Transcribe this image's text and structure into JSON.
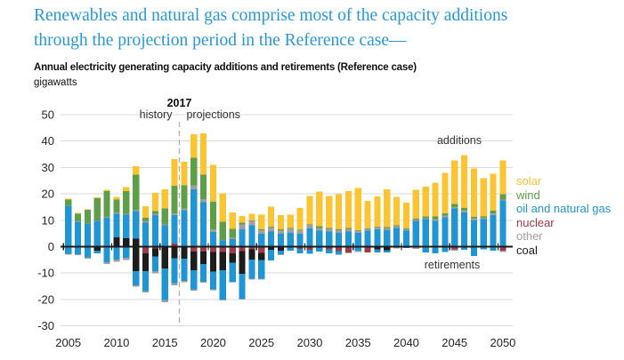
{
  "title": {
    "line1": "Renewables and natural gas comprise most of the capacity additions",
    "line2": "through the projection period in the Reference case—"
  },
  "chart": {
    "subtitle": "Annual electricity generating capacity additions and retirements (Reference case)",
    "units": "gigawatts"
  },
  "annotations": {
    "divider_year": "2017",
    "history": "history",
    "projections": "projections",
    "additions": "additions",
    "retirements": "retirements"
  },
  "colors": {
    "solar": "#fdc431",
    "wind": "#5f9e49",
    "gas": "#1f95d4",
    "nuclear": "#9e3b49",
    "other": "#9f9f9f",
    "coal": "#1d1d1d",
    "gridline": "#d9d9d9",
    "zero_axis": "#1a1a1a",
    "divider": "#b3b3b3",
    "text_dark": "#262626",
    "title_blue": "#2a96d8"
  },
  "legend": {
    "items": [
      {
        "label": "solar",
        "color_key": "solar"
      },
      {
        "label": "wind",
        "color_key": "wind"
      },
      {
        "label": "oil and natural gas",
        "color_key": "gas"
      },
      {
        "label": "nuclear",
        "color_key": "nuclear"
      },
      {
        "label": "other",
        "color_key": "other"
      },
      {
        "label": "coal",
        "color_key": "coal"
      }
    ]
  },
  "chart_data": {
    "type": "bar",
    "stacked": true,
    "title": "Annual electricity generating capacity additions and retirements (Reference case)",
    "ylabel": "gigawatts",
    "ylim": [
      -30,
      50
    ],
    "y_ticks": [
      50,
      40,
      30,
      20,
      10,
      0,
      -10,
      -20,
      -30
    ],
    "x_ticks_labeled": [
      2005,
      2010,
      2015,
      2020,
      2025,
      2030,
      2035,
      2040,
      2045,
      2050
    ],
    "divider_between": [
      2016,
      2017
    ],
    "legend_position": "right",
    "grid": "horizontal",
    "years": [
      2005,
      2006,
      2007,
      2008,
      2009,
      2010,
      2011,
      2012,
      2013,
      2014,
      2015,
      2016,
      2017,
      2018,
      2019,
      2020,
      2021,
      2022,
      2023,
      2024,
      2025,
      2026,
      2027,
      2028,
      2029,
      2030,
      2031,
      2032,
      2033,
      2034,
      2035,
      2036,
      2037,
      2038,
      2039,
      2040,
      2041,
      2042,
      2043,
      2044,
      2045,
      2046,
      2047,
      2048,
      2049,
      2050
    ],
    "series_additions": [
      {
        "name": "coal",
        "color_key": "coal",
        "values": [
          0,
          0,
          0,
          0,
          0,
          3.6,
          3.2,
          3.0,
          0,
          0,
          0,
          0,
          0,
          0,
          0,
          0,
          0,
          0,
          0,
          0,
          0,
          0,
          0,
          0,
          0,
          0,
          0,
          0,
          0,
          0,
          0,
          0,
          0,
          0,
          0,
          0,
          0,
          0,
          0,
          0,
          0,
          0,
          0,
          0,
          0,
          0
        ]
      },
      {
        "name": "nuclear",
        "color_key": "nuclear",
        "values": [
          0,
          0,
          0,
          0,
          0,
          0,
          0,
          0,
          0,
          0,
          0,
          1.1,
          0,
          0,
          0,
          0,
          0,
          0,
          0,
          0,
          0,
          0,
          0,
          0,
          0,
          0,
          0,
          0,
          0,
          0,
          0,
          0,
          0,
          0,
          0,
          0,
          0,
          0,
          0,
          0,
          0,
          0,
          0,
          0,
          0,
          0
        ]
      },
      {
        "name": "oil and natural gas",
        "color_key": "gas",
        "values": [
          15.5,
          9.5,
          8.8,
          9.7,
          11.0,
          8.9,
          9.0,
          10.5,
          9.1,
          11.9,
          8.0,
          10.8,
          13.8,
          21.7,
          16.8,
          5.5,
          2.3,
          2.9,
          6.6,
          8.0,
          4.8,
          5.7,
          4.8,
          5.2,
          4.9,
          6.9,
          6.0,
          5.7,
          5.2,
          5.7,
          5.2,
          6.0,
          6.6,
          6.3,
          7.1,
          6.0,
          9.7,
          10.4,
          9.8,
          11.1,
          14.5,
          13.0,
          10.0,
          10.4,
          11.9,
          17.5
        ]
      },
      {
        "name": "other",
        "color_key": "other",
        "values": [
          0.2,
          0.2,
          0.2,
          0.2,
          0.2,
          0.4,
          0.3,
          0.4,
          0.5,
          0.6,
          0.4,
          0.8,
          0.7,
          1.5,
          1.2,
          1.1,
          0.2,
          0.4,
          1.9,
          1.7,
          1.5,
          1.7,
          1.5,
          1.7,
          1.3,
          1.3,
          1.1,
          1.1,
          1.1,
          1.1,
          0.8,
          0.7,
          0.8,
          0.8,
          0.7,
          0.7,
          0.6,
          0.4,
          0.7,
          0.7,
          0.4,
          0.8,
          0.8,
          0.5,
          0.8,
          0.4
        ]
      },
      {
        "name": "wind",
        "color_key": "wind",
        "values": [
          2.2,
          2.7,
          4.9,
          8.5,
          9.8,
          5.0,
          8.5,
          13.3,
          1.4,
          0.9,
          6.0,
          10.4,
          8.7,
          10.4,
          9.3,
          10.4,
          7.0,
          3.4,
          0.6,
          0.2,
          0.3,
          0.2,
          0.2,
          0.2,
          0.2,
          0.3,
          0.7,
          0.3,
          0.3,
          0.3,
          0.3,
          0.2,
          0.2,
          0.3,
          0.3,
          0.2,
          0.3,
          0.6,
          0.9,
          0.9,
          1.3,
          0.9,
          0.4,
          0.6,
          0.9,
          2.0
        ]
      },
      {
        "name": "solar",
        "color_key": "solar",
        "values": [
          0.3,
          0.4,
          0.3,
          0.3,
          0.5,
          0.9,
          1.5,
          3.3,
          4.3,
          7.0,
          7.3,
          10.1,
          9.0,
          9.0,
          15.7,
          14.0,
          10.7,
          6.3,
          2.5,
          2.6,
          5.6,
          7.5,
          5.4,
          5.1,
          8.3,
          10.7,
          13.1,
          12.1,
          13.2,
          14.0,
          15.9,
          10.4,
          11.4,
          14.4,
          10.7,
          9.8,
          10.9,
          11.4,
          12.9,
          15.2,
          16.5,
          20.0,
          18.4,
          14.5,
          14.0,
          12.8
        ]
      }
    ],
    "series_retirements": [
      {
        "name": "nuclear",
        "color_key": "nuclear",
        "values": [
          0,
          0,
          0,
          0,
          0,
          0,
          0,
          0,
          -2.6,
          -0.6,
          0,
          0,
          0,
          -1.9,
          -1.9,
          -2.1,
          -2.0,
          -2.5,
          -1.6,
          -1.0,
          -2.3,
          0,
          0,
          0,
          -0.9,
          -1.2,
          0,
          -1.0,
          -1.6,
          -2.4,
          0,
          -2.2,
          0,
          0,
          0,
          0,
          0,
          0,
          0,
          0,
          -1.0,
          0,
          0,
          0,
          0,
          -1.5
        ]
      },
      {
        "name": "coal",
        "color_key": "coal",
        "values": [
          0,
          0,
          0,
          -1.5,
          0,
          0,
          0,
          -9.3,
          -6.7,
          -3.1,
          -8.2,
          -4.3,
          -4.5,
          -7.0,
          -4.7,
          -7.3,
          -6.9,
          -3.6,
          -8.7,
          -3.9,
          -2.8,
          -1.2,
          -1.5,
          0,
          0,
          0,
          0,
          0,
          0,
          0,
          0,
          0,
          -1.0,
          -1.4,
          0,
          0,
          0,
          0,
          0,
          0,
          0,
          0,
          0,
          0,
          0,
          0
        ]
      },
      {
        "name": "oil and natural gas",
        "color_key": "gas",
        "values": [
          -2.7,
          -2.8,
          -4.0,
          -1.0,
          -5.9,
          -4.8,
          -4.2,
          -5.3,
          -7.5,
          -5.5,
          -12.0,
          -9.5,
          -8.5,
          -7.3,
          -6.7,
          -6.7,
          -11.2,
          -7.3,
          -9.4,
          -7.3,
          -7.0,
          -4.0,
          -1.3,
          -1.5,
          -1.6,
          -1.5,
          -1.8,
          -1.5,
          -1.5,
          0,
          -1.5,
          0,
          -1.2,
          -0.8,
          0,
          -0.5,
          0,
          -2.2,
          -2.5,
          -2.0,
          0,
          -1.2,
          -3.5,
          -1.0,
          -1.5,
          0
        ]
      },
      {
        "name": "other",
        "color_key": "other",
        "values": [
          -0.4,
          -0.4,
          -0.6,
          0,
          -0.7,
          -0.9,
          -0.8,
          -0.6,
          -0.5,
          -0.9,
          -0.8,
          -0.9,
          -0.5,
          -0.4,
          -0.4,
          -0.4,
          -0.3,
          0,
          -0.4,
          -0.3,
          -0.4,
          0,
          -0.4,
          0,
          0,
          0,
          0,
          0,
          0,
          0,
          -0.5,
          0,
          0,
          0,
          -0.7,
          0,
          -0.8,
          0,
          0,
          0,
          -0.5,
          0,
          0,
          0,
          0,
          -0.5
        ]
      }
    ]
  }
}
